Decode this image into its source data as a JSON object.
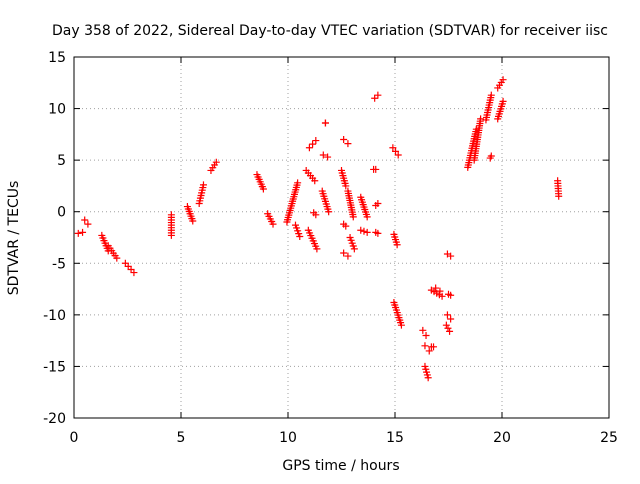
{
  "chart_data": {
    "type": "scatter",
    "title": "Day 358 of 2022, Sidereal Day-to-day VTEC variation (SDTVAR) for receiver iisc",
    "xlabel": "GPS time / hours",
    "ylabel": "SDTVAR / TECUs",
    "xlim": [
      0,
      25
    ],
    "ylim": [
      -20,
      15
    ],
    "xticks": [
      0,
      5,
      10,
      15,
      20,
      25
    ],
    "yticks": [
      -20,
      -15,
      -10,
      -5,
      0,
      5,
      10,
      15
    ],
    "grid": true,
    "marker": "+",
    "marker_color": "#ff0000",
    "series": [
      {
        "name": "SDTVAR",
        "segments": [
          {
            "x": [
              0.2,
              0.4
            ],
            "y": [
              -2.1,
              -2.0
            ]
          },
          {
            "x": [
              0.5,
              0.65
            ],
            "y": [
              -0.8,
              -1.2
            ]
          },
          {
            "x": [
              1.3,
              1.6
            ],
            "y": [
              -2.3,
              -3.8
            ]
          },
          {
            "x": [
              1.6,
              2.0
            ],
            "y": [
              -3.3,
              -4.5
            ]
          },
          {
            "x": [
              2.4,
              2.8
            ],
            "y": [
              -5.0,
              -5.9
            ]
          },
          {
            "x": [
              4.55,
              4.55
            ],
            "y": [
              -0.3,
              -2.3
            ]
          },
          {
            "x": [
              5.3,
              5.55
            ],
            "y": [
              0.5,
              -0.9
            ]
          },
          {
            "x": [
              5.85,
              6.05
            ],
            "y": [
              0.8,
              2.6
            ]
          },
          {
            "x": [
              6.4,
              6.65
            ],
            "y": [
              4.0,
              4.8
            ]
          },
          {
            "x": [
              8.55,
              8.85
            ],
            "y": [
              3.6,
              2.2
            ]
          },
          {
            "x": [
              9.05,
              9.3
            ],
            "y": [
              -0.2,
              -1.2
            ]
          },
          {
            "x": [
              9.95,
              10.45
            ],
            "y": [
              -1.0,
              2.8
            ]
          },
          {
            "x": [
              10.35,
              10.55
            ],
            "y": [
              -1.3,
              -2.4
            ]
          },
          {
            "x": [
              10.85,
              11.25
            ],
            "y": [
              4.0,
              3.0
            ]
          },
          {
            "x": [
              11.0,
              11.3
            ],
            "y": [
              6.2,
              6.9
            ]
          },
          {
            "x": [
              10.95,
              11.35
            ],
            "y": [
              -1.8,
              -3.6
            ]
          },
          {
            "x": [
              11.2,
              11.3
            ],
            "y": [
              -0.1,
              -0.3
            ]
          },
          {
            "x": [
              11.75,
              11.75
            ],
            "y": [
              8.6,
              8.6
            ]
          },
          {
            "x": [
              11.65,
              11.85
            ],
            "y": [
              5.5,
              5.3
            ]
          },
          {
            "x": [
              11.6,
              11.9
            ],
            "y": [
              2.0,
              0.0
            ]
          },
          {
            "x": [
              12.6,
              12.8
            ],
            "y": [
              7.0,
              6.6
            ]
          },
          {
            "x": [
              12.5,
              12.7
            ],
            "y": [
              4.0,
              2.5
            ]
          },
          {
            "x": [
              12.8,
              13.05
            ],
            "y": [
              2.0,
              -0.5
            ]
          },
          {
            "x": [
              12.6,
              12.7
            ],
            "y": [
              -1.2,
              -1.4
            ]
          },
          {
            "x": [
              12.6,
              12.8
            ],
            "y": [
              -4.0,
              -4.3
            ]
          },
          {
            "x": [
              12.9,
              13.1
            ],
            "y": [
              -2.5,
              -3.6
            ]
          },
          {
            "x": [
              13.4,
              13.7
            ],
            "y": [
              1.4,
              -0.5
            ]
          },
          {
            "x": [
              13.4,
              13.7
            ],
            "y": [
              -1.8,
              -2.0
            ]
          },
          {
            "x": [
              14.0,
              14.1
            ],
            "y": [
              4.1,
              4.1
            ]
          },
          {
            "x": [
              14.05,
              14.2
            ],
            "y": [
              11.0,
              11.3
            ]
          },
          {
            "x": [
              14.1,
              14.2
            ],
            "y": [
              0.6,
              0.8
            ]
          },
          {
            "x": [
              14.1,
              14.2
            ],
            "y": [
              -2.0,
              -2.1
            ]
          },
          {
            "x": [
              14.9,
              15.15
            ],
            "y": [
              6.2,
              5.5
            ]
          },
          {
            "x": [
              14.95,
              15.1
            ],
            "y": [
              -2.2,
              -3.2
            ]
          },
          {
            "x": [
              14.95,
              15.3
            ],
            "y": [
              -8.8,
              -11.0
            ]
          },
          {
            "x": [
              16.3,
              16.45
            ],
            "y": [
              -11.5,
              -12.0
            ]
          },
          {
            "x": [
              16.4,
              16.6
            ],
            "y": [
              -13.0,
              -13.5
            ]
          },
          {
            "x": [
              16.4,
              16.55
            ],
            "y": [
              -15.0,
              -16.1
            ]
          },
          {
            "x": [
              16.7,
              16.8
            ],
            "y": [
              -13.1,
              -13.1
            ]
          },
          {
            "x": [
              16.7,
              17.2
            ],
            "y": [
              -7.6,
              -8.2
            ]
          },
          {
            "x": [
              16.9,
              17.1
            ],
            "y": [
              -7.4,
              -7.7
            ]
          },
          {
            "x": [
              17.4,
              17.55
            ],
            "y": [
              -11.0,
              -11.6
            ]
          },
          {
            "x": [
              17.45,
              17.6
            ],
            "y": [
              -10.0,
              -10.4
            ]
          },
          {
            "x": [
              17.5,
              17.6
            ],
            "y": [
              -8.0,
              -8.1
            ]
          },
          {
            "x": [
              17.45,
              17.6
            ],
            "y": [
              -4.1,
              -4.3
            ]
          },
          {
            "x": [
              18.4,
              18.8
            ],
            "y": [
              4.3,
              8.0
            ]
          },
          {
            "x": [
              18.7,
              19.0
            ],
            "y": [
              5.0,
              9.0
            ]
          },
          {
            "x": [
              19.25,
              19.5
            ],
            "y": [
              8.9,
              11.3
            ]
          },
          {
            "x": [
              19.45,
              19.5
            ],
            "y": [
              5.2,
              5.4
            ]
          },
          {
            "x": [
              19.8,
              20.05
            ],
            "y": [
              9.0,
              10.7
            ]
          },
          {
            "x": [
              19.8,
              20.05
            ],
            "y": [
              12.0,
              12.8
            ]
          },
          {
            "x": [
              22.6,
              22.65
            ],
            "y": [
              3.0,
              1.5
            ]
          }
        ]
      }
    ]
  }
}
